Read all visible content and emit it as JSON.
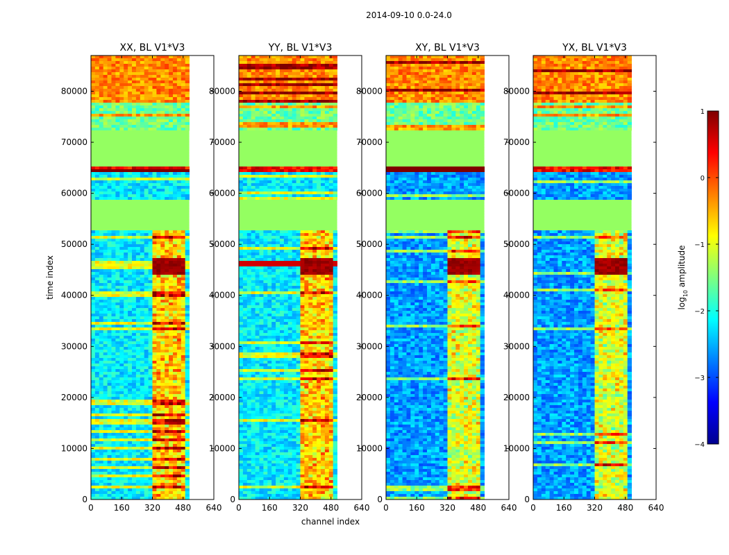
{
  "chart_data": {
    "type": "heatmap",
    "suptitle": "2014-09-10 0.0-24.0",
    "xlabel": "channel index",
    "ylabel": "time index",
    "xlim": [
      0,
      640
    ],
    "ylim": [
      0,
      87000
    ],
    "xticks": [
      0,
      160,
      320,
      480,
      640
    ],
    "yticks": [
      0,
      10000,
      20000,
      30000,
      40000,
      50000,
      60000,
      70000,
      80000
    ],
    "data_channels": [
      0,
      512
    ],
    "flagged_time_ranges": [
      [
        53000,
        58500
      ],
      [
        65200,
        72500
      ]
    ],
    "rfi_channel_range": [
      320,
      500
    ],
    "panels": [
      {
        "title": "XX, BL V1*V3"
      },
      {
        "title": "YY, BL V1*V3"
      },
      {
        "title": "XY, BL V1*V3"
      },
      {
        "title": "YX, BL V1*V3"
      }
    ],
    "colorbar": {
      "label_base": "log",
      "label_sub": "10",
      "label_rest": " amplitude",
      "vmin": -4,
      "vmax": 1,
      "ticks": [
        "1",
        "0",
        "−1",
        "−2",
        "−3",
        "−4"
      ],
      "tick_values": [
        1,
        0,
        -1,
        -2,
        -3,
        -4
      ],
      "colors": [
        "#00008f",
        "#0000ff",
        "#007fff",
        "#00ffff",
        "#7fff7f",
        "#ffff00",
        "#ff7f00",
        "#ff0000",
        "#7f0000"
      ]
    }
  }
}
